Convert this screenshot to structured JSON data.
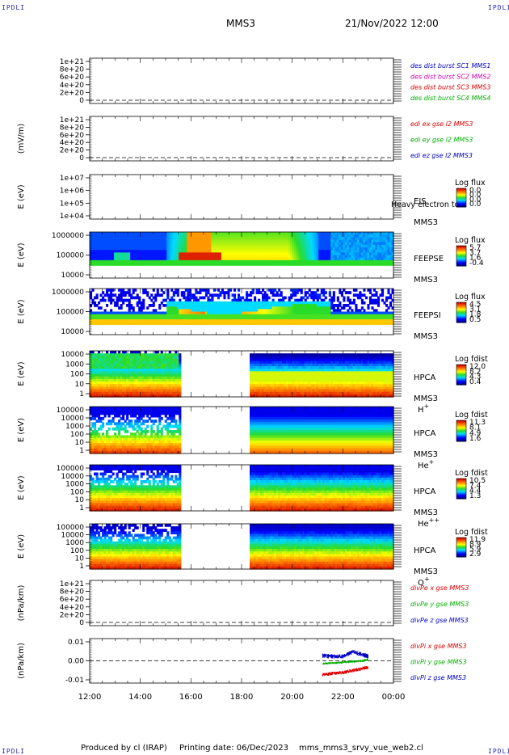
{
  "corners": {
    "top_left": "IPDLI",
    "top_right": "IPDLI",
    "bottom_left": "IPDLI",
    "bottom_right": "IPDLI"
  },
  "header": {
    "spacecraft": "MMS3",
    "date_time": "21/Nov/2022 12:00"
  },
  "footer": {
    "produced_by": "Produced by cl (IRAP)",
    "printing_date": "Printing date: 06/Dec/2023",
    "filename": "mms_mms3_srvy_vue_web2.cl"
  },
  "colors": {
    "red": "#e00000",
    "green": "#00b000",
    "blue": "#0000c8",
    "magenta": "#d000b0"
  },
  "chart_data": {
    "type": "multi-panel time series and spectrograms",
    "x_range": [
      "12:00",
      "00:00"
    ],
    "x_ticks": [
      "12:00",
      "14:00",
      "16:00",
      "18:00",
      "20:00",
      "22:00",
      "00:00"
    ],
    "panels": [
      {
        "type": "line",
        "ylabel": "",
        "ticks": [
          "1e+21",
          "8e+20",
          "6e+20",
          "4e+20",
          "2e+20",
          "0"
        ],
        "legend": [
          {
            "text": "des dist burst SC1 MMS1",
            "color": "#0000c8"
          },
          {
            "text": "des dist burst SC2 MMS2",
            "color": "#d000b0"
          },
          {
            "text": "des dist burst SC3 MMS3",
            "color": "#e00000"
          },
          {
            "text": "des dist burst SC4 MMS4",
            "color": "#00b000"
          }
        ],
        "series": []
      },
      {
        "type": "line",
        "ylabel": "(mV/m)",
        "ticks": [
          "1e+21",
          "8e+20",
          "6e+20",
          "4e+20",
          "2e+20",
          "0"
        ],
        "legend": [
          {
            "text": "edi ex gse l2 MMS3",
            "color": "#e00000"
          },
          {
            "text": "edi ey gse l2 MMS3",
            "color": "#00b000"
          },
          {
            "text": "edi ez gse l2 MMS3",
            "color": "#0000c8"
          }
        ],
        "series": []
      },
      {
        "type": "heatmap",
        "ylabel": "E (eV)",
        "ticks": [
          "1e+07",
          "1e+06",
          "1e+05",
          "1e+04"
        ],
        "labels": [
          "EIS",
          "MMS3"
        ],
        "overlay_text": "Heavy electron to",
        "colorbar": {
          "title": "Log flux",
          "values": [
            "0.0",
            "0.0",
            "0.0",
            "0.0"
          ]
        },
        "gaps": [
          [
            0,
            12
          ]
        ]
      },
      {
        "type": "heatmap",
        "ylabel": "E (eV)",
        "ticks": [
          "1000000",
          "100000",
          "10000"
        ],
        "labels": [
          "FEEPSE",
          "MMS3"
        ],
        "colorbar": {
          "title": "Log flux",
          "values": [
            "5.7",
            "3.7",
            "1.6",
            "-0.4"
          ]
        }
      },
      {
        "type": "heatmap",
        "ylabel": "E (eV)",
        "ticks": [
          "1000000",
          "100000",
          "10000"
        ],
        "labels": [
          "FEEPSI",
          "MMS3"
        ],
        "colorbar": {
          "title": "Log flux",
          "values": [
            "4.5",
            "3.1",
            "1.8",
            "0.5"
          ]
        }
      },
      {
        "type": "heatmap",
        "ylabel": "E (eV)",
        "ticks": [
          "10000",
          "1000",
          "100",
          "10",
          "1"
        ],
        "labels": [
          "HPCA",
          "MMS3"
        ],
        "species": "H",
        "charge": "+",
        "colorbar": {
          "title": "Log fdist",
          "values": [
            "12.0",
            "8.2",
            "4.3",
            "0.4"
          ]
        },
        "gaps": [
          [
            15.6,
            18.3
          ]
        ]
      },
      {
        "type": "heatmap",
        "ylabel": "E (eV)",
        "ticks": [
          "100000",
          "10000",
          "1000",
          "100",
          "10",
          "1"
        ],
        "labels": [
          "HPCA",
          "MMS3"
        ],
        "species": "He",
        "charge": "+",
        "colorbar": {
          "title": "Log fdist",
          "values": [
            "11.3",
            "8.1",
            "4.9",
            "1.6"
          ]
        },
        "gaps": [
          [
            15.6,
            18.3
          ]
        ]
      },
      {
        "type": "heatmap",
        "ylabel": "E (eV)",
        "ticks": [
          "100000",
          "10000",
          "1000",
          "100",
          "10",
          "1"
        ],
        "labels": [
          "HPCA",
          "MMS3"
        ],
        "species": "He",
        "charge": "++",
        "colorbar": {
          "title": "Log fdist",
          "values": [
            "10.5",
            "7.4",
            "4.4",
            "1.3"
          ]
        },
        "gaps": [
          [
            15.6,
            18.3
          ]
        ]
      },
      {
        "type": "heatmap",
        "ylabel": "E (eV)",
        "ticks": [
          "100000",
          "10000",
          "1000",
          "100",
          "10",
          "1"
        ],
        "labels": [
          "HPCA",
          "MMS3"
        ],
        "species": "O",
        "charge": "+",
        "colorbar": {
          "title": "Log fdist",
          "values": [
            "11.9",
            "8.9",
            "5.9",
            "2.9"
          ]
        },
        "gaps": [
          [
            15.6,
            18.3
          ]
        ]
      },
      {
        "type": "line",
        "ylabel": "(nPa/km)",
        "ticks": [
          "1e+21",
          "8e+20",
          "6e+20",
          "4e+20",
          "2e+20",
          "0"
        ],
        "legend": [
          {
            "text": "divPe x gse MMS3",
            "color": "#e00000"
          },
          {
            "text": "divPe y gse MMS3",
            "color": "#00b000"
          },
          {
            "text": "divPe z gse MMS3",
            "color": "#0000c8"
          }
        ],
        "series": []
      },
      {
        "type": "line",
        "ylabel": "(nPa/km)",
        "ticks": [
          "0.01",
          "0.00",
          "-0.01"
        ],
        "ylim": [
          -0.015,
          0.015
        ],
        "legend": [
          {
            "text": "divPi x gse MMS3",
            "color": "#e00000"
          },
          {
            "text": "divPi y gse MMS3",
            "color": "#00b000"
          },
          {
            "text": "divPi z gse MMS3",
            "color": "#0000c8"
          }
        ],
        "series": [
          {
            "name": "divPi x gse MMS3",
            "x": [
              21.2,
              21.6,
              22.0,
              22.4,
              22.8,
              23.0
            ],
            "y": [
              -0.0095,
              -0.0085,
              -0.008,
              -0.0065,
              -0.005,
              -0.0045
            ],
            "noise": 0.0012
          },
          {
            "name": "divPi y gse MMS3",
            "x": [
              21.2,
              21.6,
              22.0,
              22.4,
              22.8,
              23.0
            ],
            "y": [
              -0.002,
              -0.0015,
              -0.001,
              -0.0005,
              0.0,
              0.001
            ],
            "noise": 0.0008
          },
          {
            "name": "divPi z gse MMS3",
            "x": [
              21.2,
              21.6,
              22.0,
              22.4,
              22.8,
              23.0
            ],
            "y": [
              0.0035,
              0.003,
              0.003,
              0.006,
              0.004,
              0.003
            ],
            "noise": 0.0015
          }
        ]
      }
    ]
  }
}
